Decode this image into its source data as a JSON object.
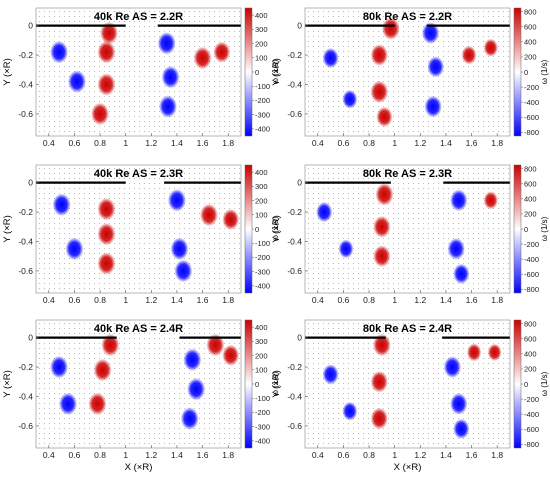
{
  "colorbar_colors": {
    "negative": "#0000ff",
    "mid": "#ffffff",
    "positive": "#cc0000"
  },
  "shared": {
    "xlabel": "X (×R)",
    "ylabel": "Y (×R)",
    "colorbar_label": "ω (1/s)",
    "xticks": [
      "0.4",
      "0.6",
      "0.8",
      "1",
      "1.2",
      "1.4",
      "1.6",
      "1.8"
    ],
    "yticks": [
      "0",
      "-0.2",
      "-0.4",
      "-0.6"
    ]
  },
  "chart_data": [
    {
      "type": "heatmap",
      "title": "40k Re AS = 2.2R",
      "xlim": [
        0.3,
        1.9
      ],
      "ylim": [
        -0.75,
        0.12
      ],
      "colorbar": {
        "range": [
          -450,
          450
        ],
        "ticks": [
          400,
          300,
          200,
          100,
          0,
          -100,
          -200,
          -300,
          -400
        ]
      },
      "walls": [
        [
          0.3,
          1.0
        ],
        [
          1.25,
          1.9
        ]
      ],
      "vortices": [
        {
          "x": 0.87,
          "y": -0.05,
          "w": 800
        },
        {
          "x": 0.85,
          "y": -0.18,
          "w": 700
        },
        {
          "x": 0.85,
          "y": -0.4,
          "w": 650
        },
        {
          "x": 0.8,
          "y": -0.6,
          "w": 600
        },
        {
          "x": 0.48,
          "y": -0.18,
          "w": -500
        },
        {
          "x": 0.62,
          "y": -0.38,
          "w": -450
        },
        {
          "x": 1.32,
          "y": -0.12,
          "w": -650
        },
        {
          "x": 1.35,
          "y": -0.35,
          "w": -600
        },
        {
          "x": 1.33,
          "y": -0.55,
          "w": -650
        },
        {
          "x": 1.6,
          "y": -0.22,
          "w": 450
        },
        {
          "x": 1.75,
          "y": -0.18,
          "w": 400
        }
      ]
    },
    {
      "type": "heatmap",
      "title": "80k Re AS = 2.2R",
      "xlim": [
        0.3,
        1.9
      ],
      "ylim": [
        -0.75,
        0.12
      ],
      "colorbar": {
        "range": [
          -850,
          850
        ],
        "ticks": [
          800,
          600,
          400,
          200,
          0,
          -200,
          -400,
          -600,
          -800
        ]
      },
      "walls": [
        [
          0.3,
          1.0
        ],
        [
          1.25,
          1.9
        ]
      ],
      "vortices": [
        {
          "x": 0.97,
          "y": -0.02,
          "w": 900
        },
        {
          "x": 0.88,
          "y": -0.2,
          "w": 800
        },
        {
          "x": 0.88,
          "y": -0.45,
          "w": 850
        },
        {
          "x": 0.92,
          "y": -0.62,
          "w": 700
        },
        {
          "x": 0.5,
          "y": -0.22,
          "w": -700
        },
        {
          "x": 0.65,
          "y": -0.5,
          "w": -600
        },
        {
          "x": 1.28,
          "y": -0.05,
          "w": -800
        },
        {
          "x": 1.32,
          "y": -0.28,
          "w": -750
        },
        {
          "x": 1.3,
          "y": -0.55,
          "w": -800
        },
        {
          "x": 1.58,
          "y": -0.2,
          "w": 600
        },
        {
          "x": 1.75,
          "y": -0.15,
          "w": 550
        }
      ]
    },
    {
      "type": "heatmap",
      "title": "40k Re AS = 2.3R",
      "xlim": [
        0.3,
        1.9
      ],
      "ylim": [
        -0.75,
        0.12
      ],
      "colorbar": {
        "range": [
          -450,
          450
        ],
        "ticks": [
          400,
          300,
          200,
          100,
          0,
          -100,
          -200,
          -300,
          -400
        ]
      },
      "walls": [
        [
          0.3,
          1.0
        ],
        [
          1.3,
          1.9
        ]
      ],
      "vortices": [
        {
          "x": 0.85,
          "y": -0.18,
          "w": 700
        },
        {
          "x": 0.85,
          "y": -0.35,
          "w": 650
        },
        {
          "x": 0.85,
          "y": -0.55,
          "w": 650
        },
        {
          "x": 0.5,
          "y": -0.15,
          "w": -500
        },
        {
          "x": 0.6,
          "y": -0.45,
          "w": -450
        },
        {
          "x": 1.4,
          "y": -0.12,
          "w": -650
        },
        {
          "x": 1.42,
          "y": -0.45,
          "w": -650
        },
        {
          "x": 1.45,
          "y": -0.6,
          "w": -600
        },
        {
          "x": 1.65,
          "y": -0.22,
          "w": 450
        },
        {
          "x": 1.82,
          "y": -0.25,
          "w": 400
        }
      ]
    },
    {
      "type": "heatmap",
      "title": "80k Re AS = 2.3R",
      "xlim": [
        0.3,
        1.9
      ],
      "ylim": [
        -0.75,
        0.12
      ],
      "colorbar": {
        "range": [
          -850,
          850
        ],
        "ticks": [
          800,
          600,
          400,
          200,
          0,
          -200,
          -400,
          -600,
          -800
        ]
      },
      "walls": [
        [
          0.3,
          0.97
        ],
        [
          1.38,
          1.9
        ]
      ],
      "vortices": [
        {
          "x": 0.92,
          "y": -0.08,
          "w": 850
        },
        {
          "x": 0.9,
          "y": -0.3,
          "w": 800
        },
        {
          "x": 0.9,
          "y": -0.5,
          "w": 800
        },
        {
          "x": 0.45,
          "y": -0.2,
          "w": -700
        },
        {
          "x": 0.62,
          "y": -0.45,
          "w": -600
        },
        {
          "x": 1.5,
          "y": -0.12,
          "w": -800
        },
        {
          "x": 1.48,
          "y": -0.45,
          "w": -800
        },
        {
          "x": 1.52,
          "y": -0.62,
          "w": -700
        },
        {
          "x": 1.75,
          "y": -0.12,
          "w": 550
        }
      ]
    },
    {
      "type": "heatmap",
      "title": "40k Re AS = 2.4R",
      "xlim": [
        0.3,
        1.9
      ],
      "ylim": [
        -0.75,
        0.12
      ],
      "colorbar": {
        "range": [
          -450,
          450
        ],
        "ticks": [
          400,
          300,
          200,
          100,
          0,
          -100,
          -200,
          -300,
          -400
        ]
      },
      "walls": [
        [
          0.3,
          0.93
        ],
        [
          1.42,
          1.9
        ]
      ],
      "vortices": [
        {
          "x": 0.88,
          "y": -0.05,
          "w": 750
        },
        {
          "x": 0.82,
          "y": -0.22,
          "w": 700
        },
        {
          "x": 0.78,
          "y": -0.45,
          "w": 650
        },
        {
          "x": 0.48,
          "y": -0.2,
          "w": -500
        },
        {
          "x": 0.55,
          "y": -0.45,
          "w": -450
        },
        {
          "x": 1.52,
          "y": -0.15,
          "w": -650
        },
        {
          "x": 1.55,
          "y": -0.35,
          "w": -600
        },
        {
          "x": 1.5,
          "y": -0.55,
          "w": -600
        },
        {
          "x": 1.7,
          "y": -0.05,
          "w": 450
        },
        {
          "x": 1.82,
          "y": -0.12,
          "w": 400
        }
      ]
    },
    {
      "type": "heatmap",
      "title": "80k Re AS = 2.4R",
      "xlim": [
        0.3,
        1.9
      ],
      "ylim": [
        -0.75,
        0.12
      ],
      "colorbar": {
        "range": [
          -850,
          850
        ],
        "ticks": [
          800,
          600,
          400,
          200,
          0,
          -200,
          -400,
          -600,
          -800
        ]
      },
      "walls": [
        [
          0.3,
          0.93
        ],
        [
          1.37,
          1.9
        ]
      ],
      "vortices": [
        {
          "x": 0.9,
          "y": -0.05,
          "w": 850
        },
        {
          "x": 0.88,
          "y": -0.3,
          "w": 800
        },
        {
          "x": 0.88,
          "y": -0.55,
          "w": 800
        },
        {
          "x": 0.5,
          "y": -0.25,
          "w": -700
        },
        {
          "x": 0.65,
          "y": -0.5,
          "w": -600
        },
        {
          "x": 1.45,
          "y": -0.2,
          "w": -800
        },
        {
          "x": 1.5,
          "y": -0.45,
          "w": -800
        },
        {
          "x": 1.52,
          "y": -0.62,
          "w": -700
        },
        {
          "x": 1.62,
          "y": -0.1,
          "w": 550
        },
        {
          "x": 1.78,
          "y": -0.1,
          "w": 500
        }
      ]
    }
  ]
}
